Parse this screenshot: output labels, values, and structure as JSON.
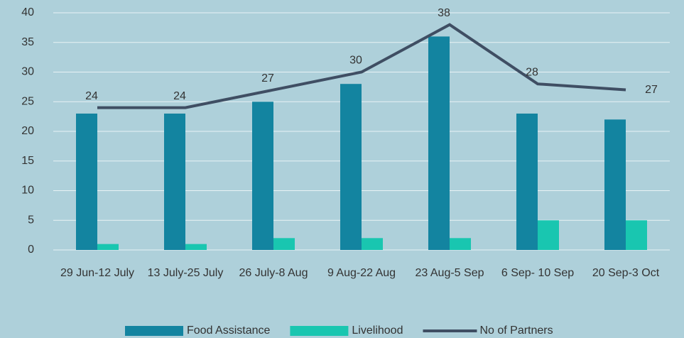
{
  "chart_data": {
    "type": "bar-line",
    "categories": [
      "29 Jun-12 July",
      "13 July-25 July",
      "26 July-8 Aug",
      "9 Aug-22 Aug",
      "23 Aug-5 Sep",
      "6 Sep- 10 Sep",
      "20 Sep-3 Oct"
    ],
    "series": [
      {
        "name": "Food Assistance",
        "type": "bar",
        "color": "#1384a0",
        "values": [
          23,
          23,
          25,
          28,
          36,
          23,
          22
        ]
      },
      {
        "name": "Livelihood",
        "type": "bar",
        "color": "#19c6b0",
        "values": [
          1,
          1,
          2,
          2,
          2,
          5,
          5
        ]
      },
      {
        "name": "No of Partners",
        "type": "line",
        "color": "#3f4e63",
        "values": [
          24,
          24,
          27,
          30,
          38,
          28,
          27
        ],
        "data_labels": true
      }
    ],
    "ylim": [
      0,
      40
    ],
    "yticks": [
      0,
      5,
      10,
      15,
      20,
      25,
      30,
      35,
      40
    ],
    "grid": true,
    "legend": "bottom"
  }
}
